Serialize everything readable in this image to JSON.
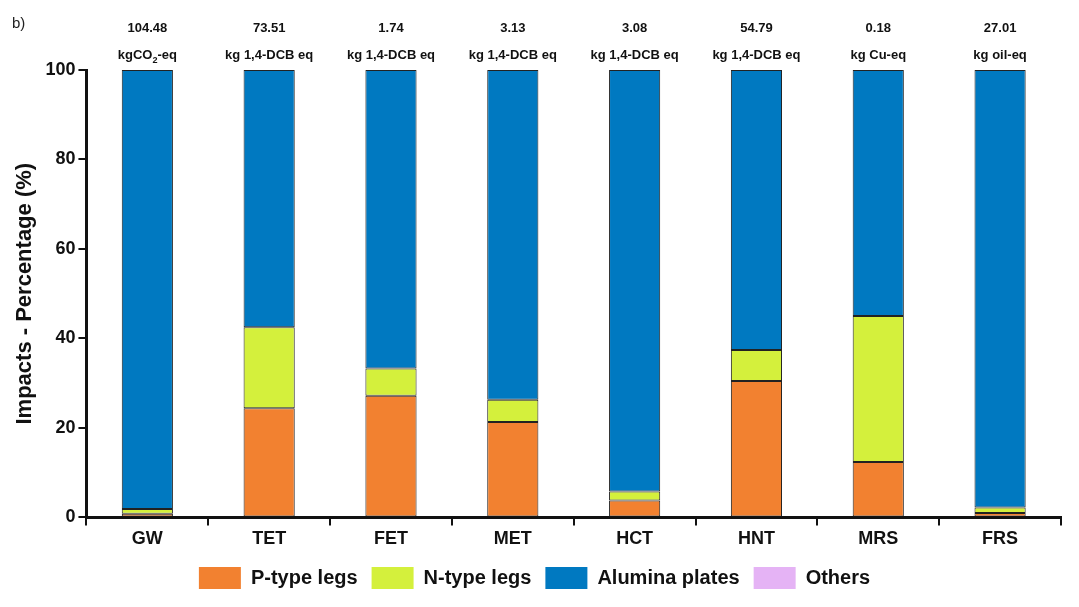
{
  "chart_data": {
    "type": "bar",
    "title": "b)",
    "ylabel": "Impacts - Percentage (%)",
    "categories": [
      "GW",
      "TET",
      "FET",
      "MET",
      "HCT",
      "HNT",
      "MRS",
      "FRS"
    ],
    "series": [
      {
        "name": "P-type legs",
        "color": "#f28130",
        "values": [
          0.8,
          24.4,
          27.2,
          21.3,
          3.8,
          30.5,
          12.4,
          1.0
        ]
      },
      {
        "name": "N-type legs",
        "color": "#d4f03c",
        "values": [
          1.1,
          18.1,
          6.1,
          5.0,
          2.0,
          6.9,
          32.6,
          1.2
        ]
      },
      {
        "name": "Alumina plates",
        "color": "#0079c1",
        "values": [
          98.1,
          57.5,
          66.7,
          73.7,
          94.2,
          62.6,
          55.0,
          97.8
        ]
      },
      {
        "name": "Others",
        "color": "#e5b3f5",
        "values": [
          0,
          0,
          0,
          0,
          0,
          0,
          0,
          0
        ]
      }
    ],
    "stacked": true,
    "ylim": [
      0,
      100
    ],
    "yticks": [
      0,
      20,
      40,
      60,
      80,
      100
    ],
    "grid": false,
    "legend": "bottom",
    "annotations": [
      "104.48\nkgCO$_{2}$-eq",
      "73.51\nkg 1,4-DCB eq",
      "1.74\nkg 1,4-DCB eq",
      "3.13\nkg 1,4-DCB eq",
      "3.08\nkg 1,4-DCB eq",
      "54.79\nkg 1,4-DCB eq",
      "0.18\nkg Cu-eq",
      "27.01\nkg oil-eq"
    ]
  }
}
